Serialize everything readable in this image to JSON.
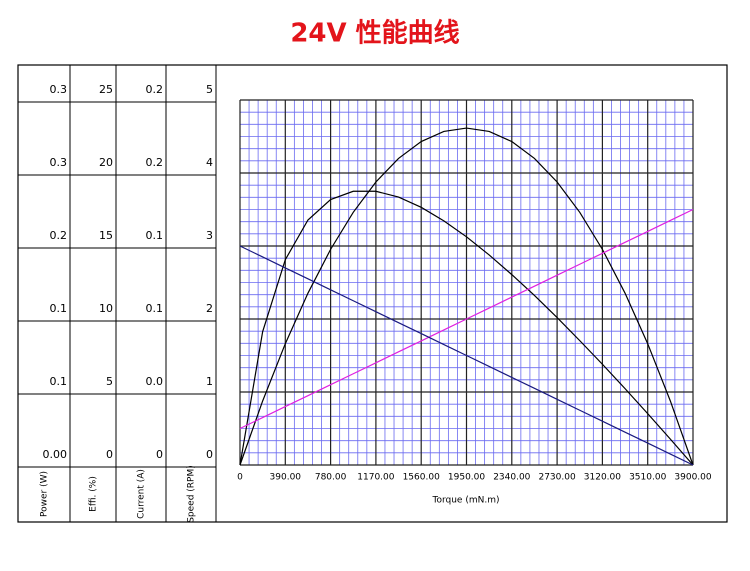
{
  "chart_data": {
    "type": "line",
    "title": "24V 性能曲线",
    "x_label": "Torque (mN.m)",
    "xlim": [
      0,
      3900
    ],
    "xticks": [
      0,
      {
        "value": 390,
        "label": "390.00"
      },
      {
        "value": 780,
        "label": "780.00"
      },
      {
        "value": 1170,
        "label": "1170.00"
      },
      {
        "value": 1560,
        "label": "1560.00"
      },
      {
        "value": 1950,
        "label": "1950.00"
      },
      {
        "value": 2340,
        "label": "2340.00"
      },
      {
        "value": 2730,
        "label": "2730.00"
      },
      {
        "value": 3120,
        "label": "3120.00"
      },
      {
        "value": 3510,
        "label": "3510.00"
      },
      {
        "value": 3900,
        "label": "3900.00"
      }
    ],
    "grid": true,
    "axes": [
      {
        "label": "Power (W)",
        "ylim": [
          0,
          0.325
        ],
        "yticks": [
          {
            "value": 0,
            "label": "0.00"
          },
          {
            "value": 0.065,
            "label": "0.1"
          },
          {
            "value": 0.13,
            "label": "0.1"
          },
          {
            "value": 0.195,
            "label": "0.2"
          },
          {
            "value": 0.26,
            "label": "0.3"
          },
          {
            "value": 0.325,
            "label": "0.3"
          }
        ]
      },
      {
        "label": "Effi. (%)",
        "ylim": [
          0,
          25
        ],
        "yticks": [
          0,
          5,
          10,
          15,
          20,
          25
        ]
      },
      {
        "label": "Current (A)",
        "ylim": [
          0,
          0.2
        ],
        "yticks": [
          0,
          {
            "value": 0.04,
            "label": "0.0"
          },
          {
            "value": 0.08,
            "label": "0.1"
          },
          {
            "value": 0.12,
            "label": "0.1"
          },
          {
            "value": 0.16,
            "label": "0.2"
          },
          0.2
        ]
      },
      {
        "label": "Speed (RPM)",
        "ylim": [
          0,
          5
        ],
        "yticks": [
          0,
          1,
          2,
          3,
          4,
          5
        ]
      }
    ],
    "x": [
      0,
      195,
      390,
      585,
      780,
      975,
      1170,
      1365,
      1560,
      1755,
      1950,
      2145,
      2340,
      2535,
      2730,
      2925,
      3120,
      3315,
      3510,
      3705,
      3900
    ],
    "series": [
      {
        "axis": 0,
        "color": "#000000",
        "values": [
          0,
          0.057,
          0.108,
          0.153,
          0.192,
          0.225,
          0.252,
          0.273,
          0.288,
          0.297,
          0.3,
          0.297,
          0.288,
          0.273,
          0.252,
          0.225,
          0.192,
          0.153,
          0.108,
          0.057,
          0
        ]
      },
      {
        "axis": 1,
        "color": "#000000",
        "values": [
          0,
          9.13,
          14.06,
          16.78,
          18.18,
          18.75,
          18.75,
          18.35,
          17.65,
          16.72,
          15.63,
          14.39,
          13.04,
          11.61,
          10.1,
          8.52,
          6.9,
          5.23,
          3.52,
          1.77,
          0
        ]
      },
      {
        "axis": 2,
        "color": "#e020e0",
        "values": [
          0.02,
          0.026,
          0.032,
          0.038,
          0.044,
          0.05,
          0.056,
          0.062,
          0.068,
          0.074,
          0.08,
          0.086,
          0.092,
          0.098,
          0.104,
          0.11,
          0.116,
          0.122,
          0.128,
          0.134,
          0.14
        ]
      },
      {
        "axis": 3,
        "color": "#1a1a80",
        "values": [
          3,
          2.85,
          2.7,
          2.55,
          2.4,
          2.25,
          2.1,
          1.95,
          1.8,
          1.65,
          1.5,
          1.35,
          1.2,
          1.05,
          0.9,
          0.75,
          0.6,
          0.45,
          0.3,
          0.15,
          0
        ]
      }
    ]
  }
}
